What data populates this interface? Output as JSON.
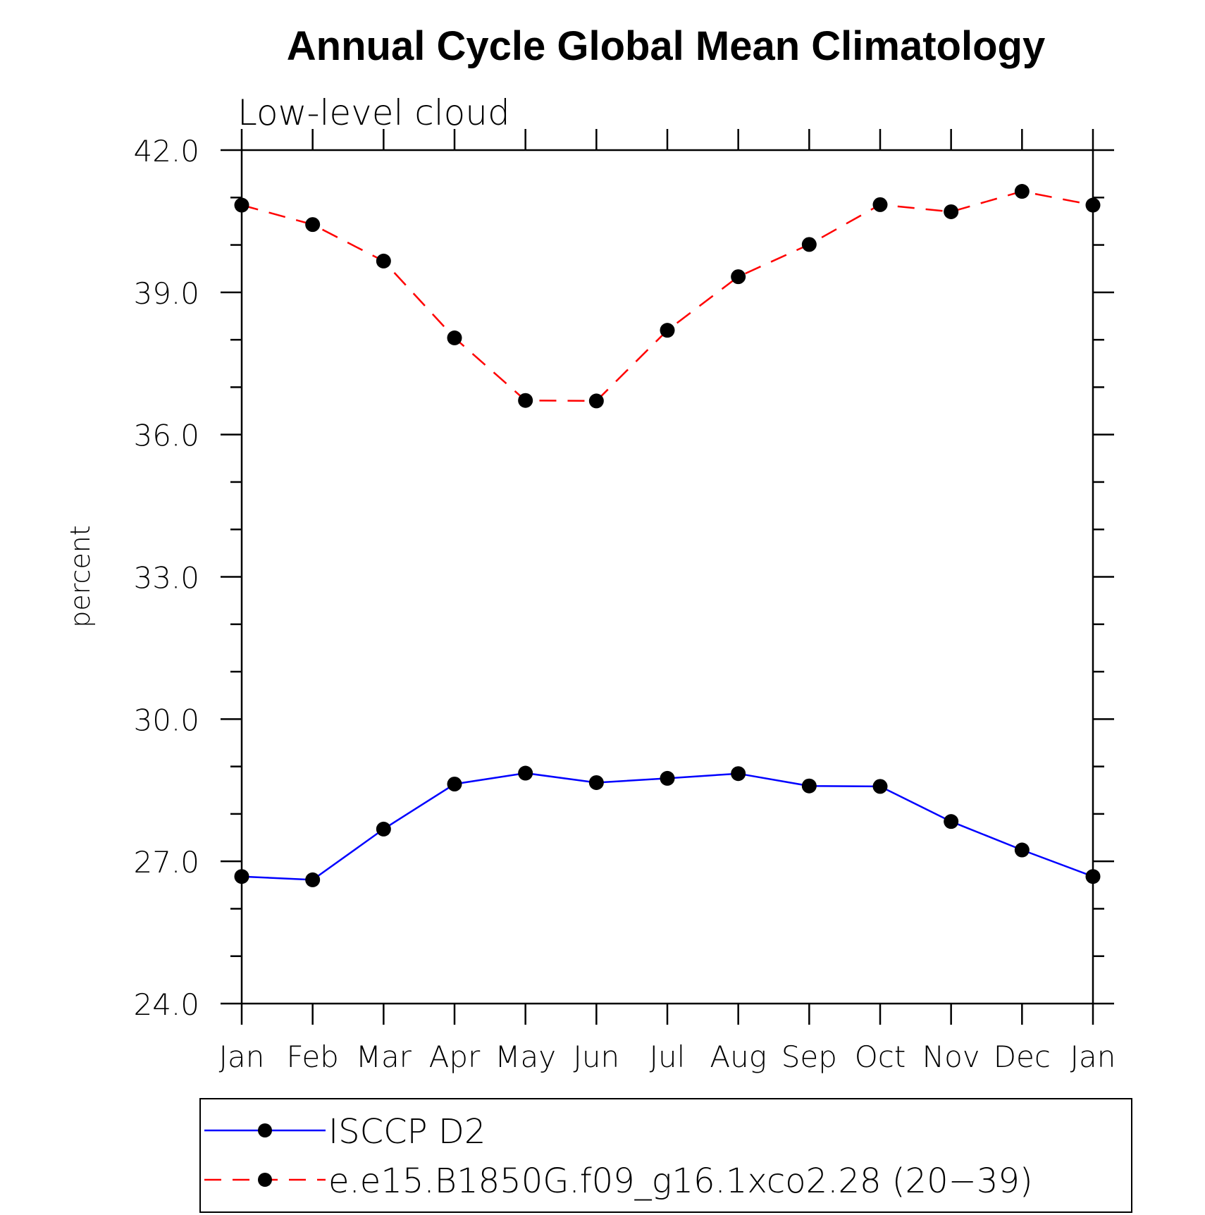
{
  "chart_data": {
    "type": "line",
    "title": "Annual Cycle Global Mean Climatology",
    "subtitle": "Low-level cloud",
    "xlabel": "",
    "ylabel": "percent",
    "ylim": [
      24.0,
      42.0
    ],
    "yticks": [
      "24.0",
      "27.0",
      "30.0",
      "33.0",
      "36.0",
      "39.0",
      "42.0"
    ],
    "categories": [
      "Jan",
      "Feb",
      "Mar",
      "Apr",
      "May",
      "Jun",
      "Jul",
      "Aug",
      "Sep",
      "Oct",
      "Nov",
      "Dec",
      "Jan"
    ],
    "grid": false,
    "legend_position": "bottom",
    "series": [
      {
        "name": "ISCCP D2",
        "color": "#0000ff",
        "dash": "solid",
        "values": [
          26.68,
          26.61,
          27.68,
          28.63,
          28.86,
          28.66,
          28.75,
          28.85,
          28.59,
          28.58,
          27.84,
          27.24,
          26.68
        ]
      },
      {
        "name": "e.e15.B1850G.f09_g16.1xco2.28 (20−39)",
        "color": "#ff0000",
        "dash": "dashed",
        "values": [
          40.84,
          40.43,
          39.66,
          38.04,
          36.72,
          36.71,
          38.2,
          39.33,
          40.01,
          40.85,
          40.7,
          41.13,
          40.84
        ]
      }
    ]
  }
}
